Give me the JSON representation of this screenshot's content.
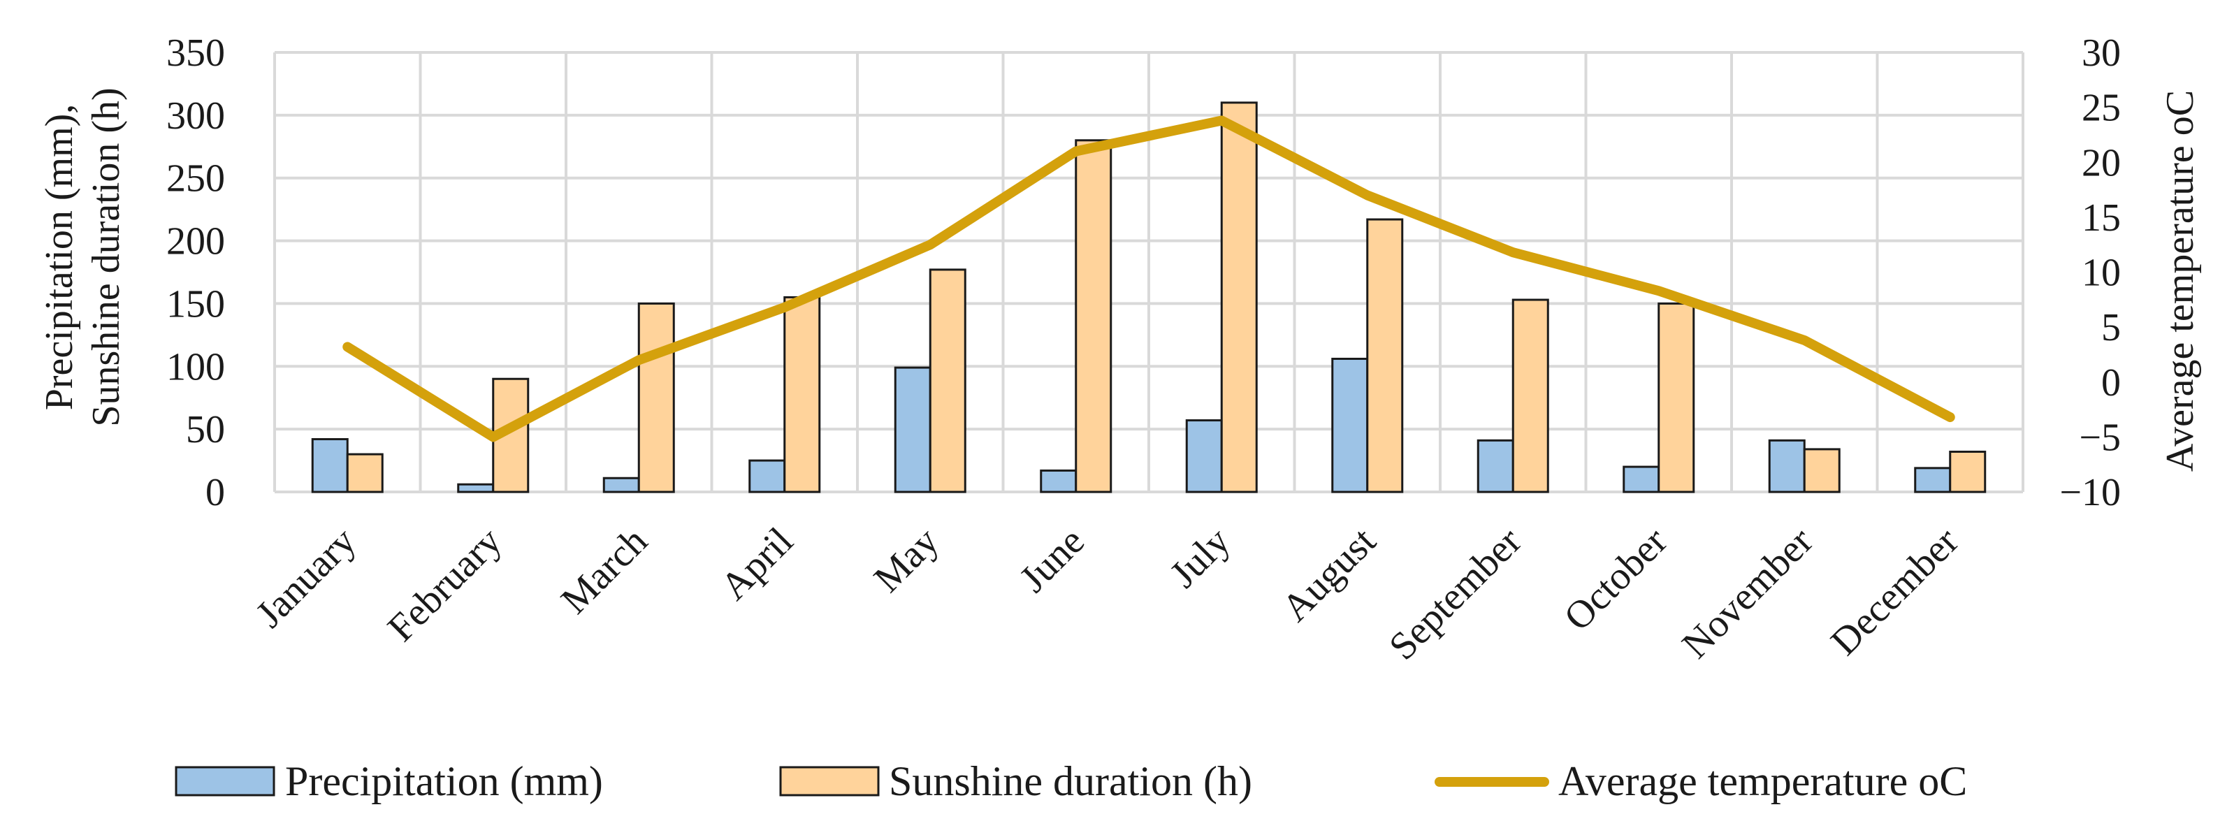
{
  "chart_data": {
    "type": "bar",
    "title": "",
    "categories": [
      "January",
      "February",
      "March",
      "April",
      "May",
      "June",
      "July",
      "August",
      "September",
      "October",
      "November",
      "December"
    ],
    "y_left": {
      "label_lines": [
        "Precipitation (mm),",
        "Sunshine duration (h)"
      ],
      "ylim": [
        0,
        350
      ],
      "ticks": [
        0,
        50,
        100,
        150,
        200,
        250,
        300,
        350
      ],
      "tick_labels": [
        "0",
        "50",
        "100",
        "150",
        "200",
        "250",
        "300",
        "350"
      ]
    },
    "y_right": {
      "label": "Average temperature oC",
      "ylim": [
        -10,
        30
      ],
      "ticks": [
        -10,
        -5,
        0,
        5,
        10,
        15,
        20,
        25,
        30
      ],
      "tick_labels": [
        "−10",
        "−5",
        "0",
        "5",
        "10",
        "15",
        "20",
        "25",
        "30"
      ]
    },
    "grid": true,
    "legend_position": "bottom",
    "series": [
      {
        "name": "Precipitation (mm)",
        "type": "bar",
        "axis": "left",
        "color": "#9dc3e6",
        "values": [
          42,
          6,
          11,
          25,
          99,
          17,
          57,
          106,
          41,
          20,
          41,
          19
        ]
      },
      {
        "name": "Sunshine duration (h)",
        "type": "bar",
        "axis": "left",
        "color": "#ffd39b",
        "values": [
          30,
          90,
          150,
          155,
          177,
          280,
          310,
          217,
          153,
          150,
          34,
          32
        ]
      },
      {
        "name": "Average temperature oC",
        "type": "line",
        "axis": "right",
        "color": "#d4a10c",
        "values": [
          3.2,
          -5.0,
          2.0,
          6.8,
          12.5,
          21.0,
          23.8,
          17.0,
          11.8,
          8.3,
          3.8,
          -3.2
        ]
      }
    ]
  }
}
